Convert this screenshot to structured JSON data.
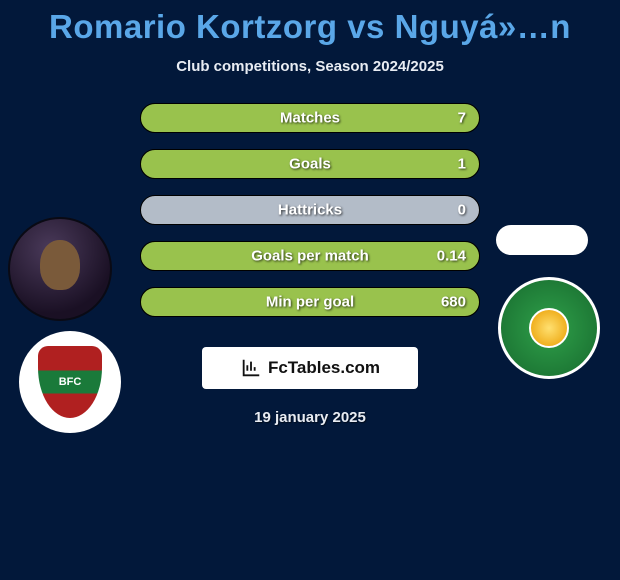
{
  "background_color": "#02183a",
  "title_color": "#5aa7e8",
  "title": "Romario Kortzorg vs Nguyá»…n",
  "subtitle": "Club competitions, Season 2024/2025",
  "bars": {
    "track_color": "#b3bcc8",
    "fill_color": "#99c24d",
    "text_color": "#ffffff",
    "items": [
      {
        "label": "Matches",
        "value": "7",
        "fill_pct": 100
      },
      {
        "label": "Goals",
        "value": "1",
        "fill_pct": 100
      },
      {
        "label": "Hattricks",
        "value": "0",
        "fill_pct": 0
      },
      {
        "label": "Goals per match",
        "value": "0.14",
        "fill_pct": 100
      },
      {
        "label": "Min per goal",
        "value": "680",
        "fill_pct": 100
      }
    ]
  },
  "brand": "FcTables.com",
  "date": "19 january 2025"
}
